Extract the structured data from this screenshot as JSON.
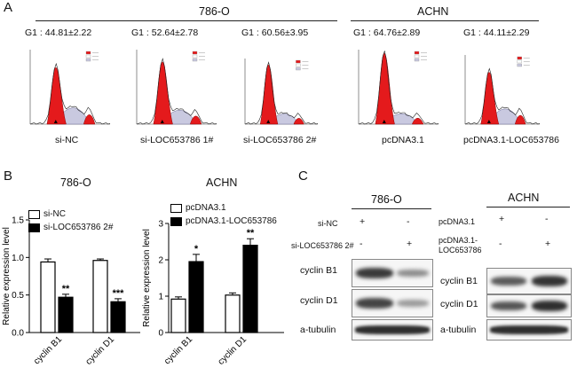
{
  "panels": {
    "a": "A",
    "b": "B",
    "c": "C"
  },
  "panel_a": {
    "group_786": "786-O",
    "group_achn": "ACHN",
    "plots": [
      {
        "g1": "G1 : 44.81±2.22",
        "label": "si-NC",
        "g1_fraction": 0.448
      },
      {
        "g1": "G1 : 52.64±2.78",
        "label": "si-LOC653786 1#",
        "g1_fraction": 0.526
      },
      {
        "g1": "G1 : 60.56±3.95",
        "label": "si-LOC653786 2#",
        "g1_fraction": 0.606
      },
      {
        "g1": "G1 : 64.76±2.89",
        "label": "pcDNA3.1",
        "g1_fraction": 0.648
      },
      {
        "g1": "G1 : 44.11±2.29",
        "label": "pcDNA3.1-LOC653786",
        "g1_fraction": 0.441
      }
    ]
  },
  "chart_data": [
    {
      "type": "bar",
      "title": "786-O",
      "ylabel": "Relative expression level",
      "categories": [
        "cyclin B1",
        "cyclin D1"
      ],
      "ylim": [
        0,
        1.5
      ],
      "yticks": [
        "0.0",
        "0.5",
        "1.0",
        "1.5"
      ],
      "series": [
        {
          "name": "si-NC",
          "values": [
            0.94,
            0.96
          ],
          "errors": [
            0.04,
            0.02
          ],
          "color": "#ffffff"
        },
        {
          "name": "si-LOC653786 2#",
          "values": [
            0.47,
            0.41
          ],
          "errors": [
            0.04,
            0.04
          ],
          "color": "#000000"
        }
      ],
      "significance": [
        "",
        "**",
        "",
        "***"
      ],
      "legend": "top-left"
    },
    {
      "type": "bar",
      "title": "ACHN",
      "ylabel": "Relative expression level",
      "categories": [
        "cyclin B1",
        "cyclin D1"
      ],
      "ylim": [
        0,
        3
      ],
      "yticks": [
        "0",
        "1",
        "2",
        "3"
      ],
      "series": [
        {
          "name": "pcDNA3.1",
          "values": [
            0.92,
            1.03
          ],
          "errors": [
            0.06,
            0.06
          ],
          "color": "#ffffff"
        },
        {
          "name": "pcDNA3.1-LOC653786",
          "values": [
            1.95,
            2.4
          ],
          "errors": [
            0.2,
            0.18
          ],
          "color": "#000000"
        }
      ],
      "significance": [
        "",
        "*",
        "",
        "**"
      ],
      "legend": "top-left"
    }
  ],
  "panel_c": {
    "group_786": "786-O",
    "group_achn": "ACHN",
    "row1_label_786": "si-NC",
    "row2_label_786": "si-LOC653786 2#",
    "row1_label_achn": "pcDNA3.1",
    "row2_label_achn": "pcDNA3.1-LOC653786",
    "plus": "+",
    "minus": "-",
    "bands": [
      "cyclin B1",
      "cyclin D1",
      "a-tubulin"
    ]
  }
}
